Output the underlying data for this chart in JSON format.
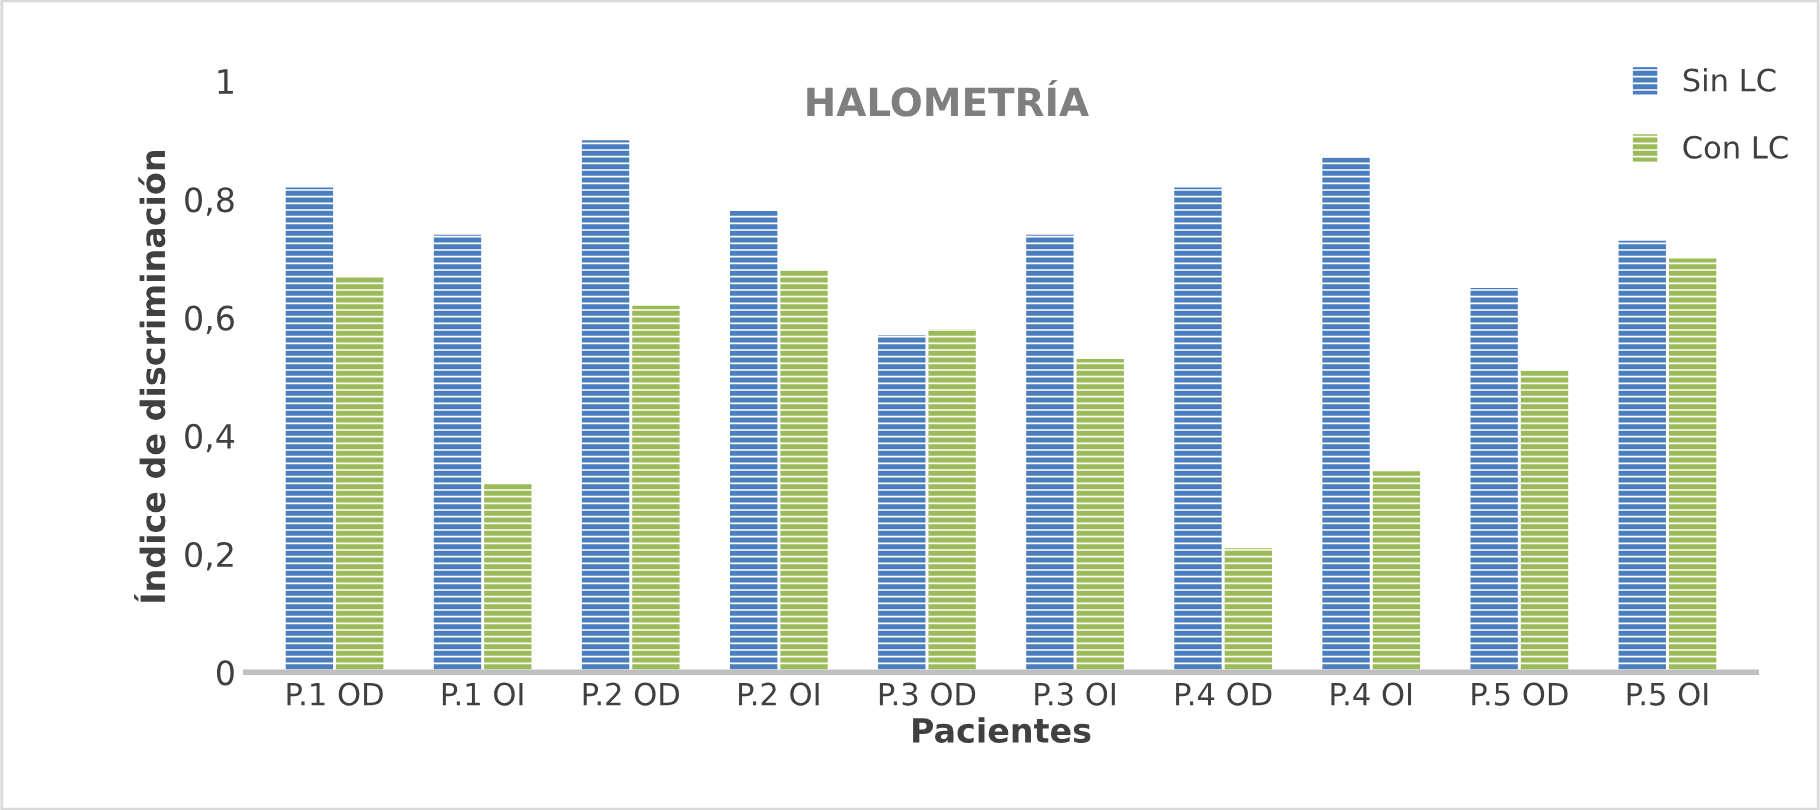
{
  "chart_data": {
    "type": "bar",
    "title": "HALOMETRÍA",
    "xlabel": "Pacientes",
    "ylabel": "Índice de discriminación",
    "categories": [
      "P.1 OD",
      "P.1 OI",
      "P.2 OD",
      "P.2 OI",
      "P.3 OD",
      "P.3 OI",
      "P.4 OD",
      "P.4 OI",
      "P.5 OD",
      "P.5 OI"
    ],
    "series": [
      {
        "name": "Sin LC",
        "color": "#4a7ebf",
        "values": [
          0.82,
          0.74,
          0.9,
          0.78,
          0.57,
          0.74,
          0.82,
          0.87,
          0.65,
          0.73
        ]
      },
      {
        "name": "Con LC",
        "color": "#9bbb59",
        "values": [
          0.67,
          0.32,
          0.62,
          0.68,
          0.58,
          0.53,
          0.21,
          0.34,
          0.51,
          0.7
        ]
      }
    ],
    "ylim": [
      0,
      1
    ],
    "yticks": [
      0,
      {
        "value": 0.2,
        "label": "0,2"
      },
      {
        "value": 0.4,
        "label": "0,4"
      },
      {
        "value": 0.6,
        "label": "0,6"
      },
      {
        "value": 0.8,
        "label": "0,8"
      },
      1
    ],
    "grid": false,
    "legend": "top right"
  }
}
